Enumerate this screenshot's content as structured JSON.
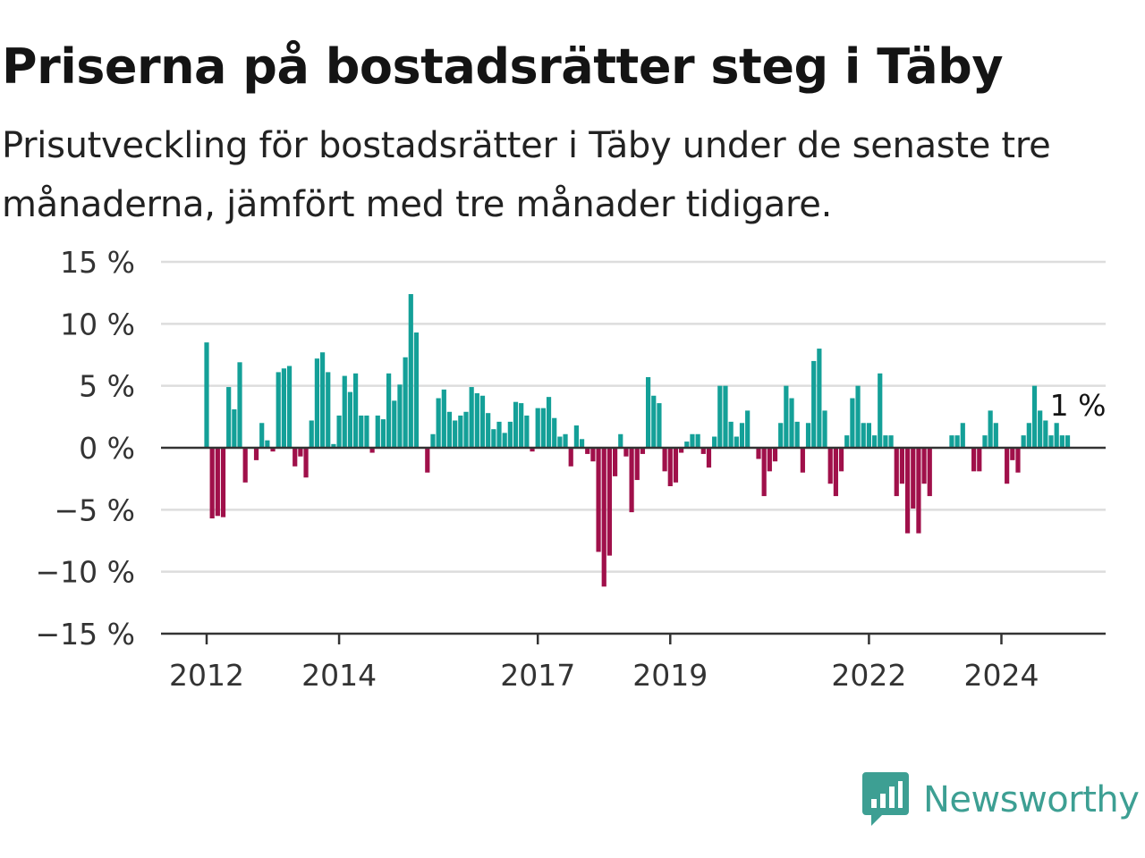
{
  "title": "Priserna på bostadsrätter steg i Täby",
  "subtitle": "Prisutveckling för bostadsrätter i Täby under de senaste tre månaderna, jämfört med tre månader tidigare.",
  "logo": {
    "text": "Newsworthy",
    "icon": "newsworthy-bars-icon",
    "color": "#3d9f93"
  },
  "colors": {
    "positive": "#14a098",
    "negative": "#a0104a",
    "grid": "#dddddd",
    "zero_line": "#333333"
  },
  "chart_data": {
    "type": "bar",
    "title": "Priserna på bostadsrätter steg i Täby",
    "subtitle": "Prisutveckling för bostadsrätter i Täby under de senaste tre månaderna, jämfört med tre månader tidigare.",
    "xlabel": "",
    "ylabel": "",
    "ylim": [
      -15,
      15
    ],
    "grid": true,
    "y_ticks": [
      {
        "value": 15,
        "label": "15 %"
      },
      {
        "value": 10,
        "label": "10 %"
      },
      {
        "value": 5,
        "label": "5 %"
      },
      {
        "value": 0,
        "label": "0 %"
      },
      {
        "value": -5,
        "label": "−5 %"
      },
      {
        "value": -10,
        "label": "−10 %"
      },
      {
        "value": -15,
        "label": "−15 %"
      }
    ],
    "x_ticks": [
      {
        "index": 0,
        "label": "2012"
      },
      {
        "index": 24,
        "label": "2014"
      },
      {
        "index": 60,
        "label": "2017"
      },
      {
        "index": 84,
        "label": "2019"
      },
      {
        "index": 120,
        "label": "2022"
      },
      {
        "index": 144,
        "label": "2024"
      }
    ],
    "annotation": {
      "index": 153,
      "value": 1,
      "label": "1 %"
    },
    "series": [
      {
        "values": [
          8.5,
          -5.7,
          -5.5,
          -5.6,
          4.9,
          3.1,
          6.9,
          -2.8,
          0,
          -1,
          2,
          0.6,
          -0.3,
          6.1,
          6.4,
          6.6,
          -1.5,
          -0.7,
          -2.4,
          2.2,
          7.2,
          7.7,
          6.1,
          0.3,
          2.6,
          5.8,
          4.5,
          6.0,
          2.6,
          2.6,
          -0.4,
          2.6,
          2.3,
          6.0,
          3.8,
          5.1,
          7.3,
          12.4,
          9.3,
          0,
          -2.0,
          1.1,
          4.0,
          4.7,
          2.9,
          2.2,
          2.6,
          2.9,
          4.9,
          4.4,
          4.2,
          2.8,
          1.5,
          2.1,
          1.2,
          2.1,
          3.7,
          3.6,
          2.6,
          -0.3,
          3.2,
          3.2,
          4.1,
          2.4,
          0.9,
          1.1,
          -1.5,
          1.8,
          0.7,
          -0.5,
          -1.1,
          -8.4,
          -11.2,
          -8.7,
          -2.3,
          1.1,
          -0.7,
          -5.2,
          -2.6,
          -0.5,
          5.7,
          4.2,
          3.6,
          -1.9,
          -3.1,
          -2.8,
          -0.4,
          0.5,
          1.1,
          1.1,
          -0.5,
          -1.6,
          0.9,
          5.0,
          5.0,
          2.1,
          0.9,
          2.0,
          3.0,
          0,
          -0.9,
          -3.9,
          -1.9,
          -1.1,
          2.0,
          5.0,
          4.0,
          2.1,
          -2.0,
          2.0,
          7.0,
          8.0,
          3.0,
          -2.9,
          -3.9,
          -1.9,
          1.0,
          4.0,
          5.0,
          2.0,
          2.0,
          1.0,
          6.0,
          1.0,
          1.0,
          -3.9,
          -2.9,
          -6.9,
          -4.9,
          -6.9,
          -2.9,
          -3.9,
          0,
          0,
          0,
          1.0,
          1.0,
          2.0,
          0,
          -1.9,
          -1.9,
          1.0,
          3.0,
          2.0,
          0,
          -2.9,
          -1.0,
          -2.0,
          1.0,
          2.0,
          5.0,
          3.0,
          2.2,
          1.0,
          2.0,
          1.0,
          1.0
        ]
      }
    ]
  }
}
